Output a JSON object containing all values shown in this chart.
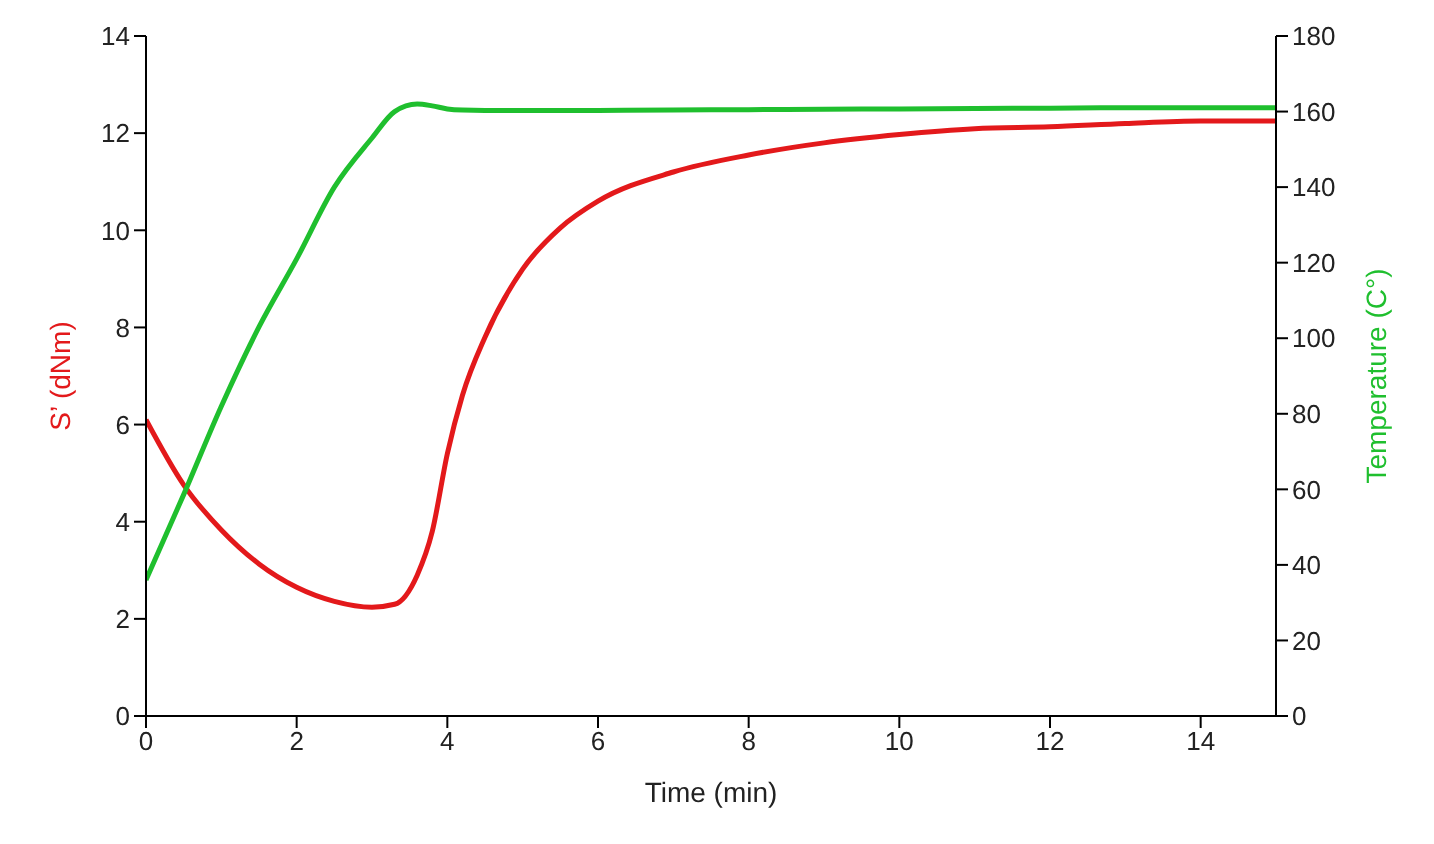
{
  "chart_data": {
    "type": "line",
    "xlabel": "Time (min)",
    "ylabel": "S’ (dNm)",
    "y2label": "Temperature (C°)",
    "x": [
      0,
      0.5,
      1,
      1.5,
      2,
      2.5,
      3,
      3.3,
      3.6,
      3.8,
      4,
      4.2,
      4.5,
      5,
      5.5,
      6,
      7,
      8,
      9,
      10,
      11,
      12,
      13,
      14,
      15
    ],
    "series": [
      {
        "color": "#e3191b",
        "values": [
          6.1,
          4.76,
          3.83,
          3.13,
          2.65,
          2.36,
          2.24,
          2.3,
          2.9,
          3.8,
          5.4,
          6.6,
          7.8,
          9.2,
          10.05,
          10.6,
          11.2,
          11.55,
          11.8,
          11.97,
          12.09,
          12.13,
          12.2,
          12.25,
          12.25
        ]
      },
      {
        "color": "#1fbf2e",
        "axis": "y2",
        "values": [
          36,
          58.6,
          82,
          103,
          121,
          140,
          153,
          160,
          162,
          161.5,
          160.7,
          160.4,
          160.3,
          160.3,
          160.3,
          160.3,
          160.4,
          160.5,
          160.6,
          160.7,
          160.8,
          160.9,
          161,
          161,
          161
        ]
      }
    ],
    "xlim": [
      0,
      15
    ],
    "xticks": [
      0,
      2,
      4,
      6,
      8,
      10,
      12,
      14
    ],
    "ylim": [
      0,
      14
    ],
    "yticks": [
      0,
      2,
      4,
      6,
      8,
      10,
      12,
      14
    ],
    "y2lim": [
      0,
      180
    ],
    "y2ticks": [
      0,
      20,
      40,
      60,
      80,
      100,
      120,
      140,
      160,
      180
    ],
    "grid": false,
    "legend": false,
    "marker": "none",
    "line_style": "solid"
  }
}
